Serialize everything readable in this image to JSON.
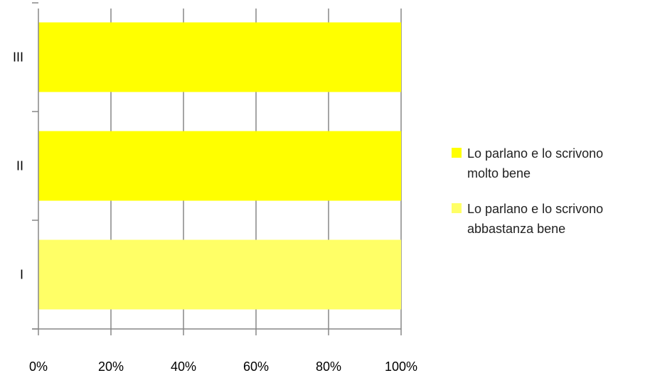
{
  "chart_data": {
    "type": "bar",
    "orientation": "horizontal",
    "stacked": "percent",
    "title": "",
    "xlabel": "",
    "ylabel": "",
    "categories": [
      "I",
      "II",
      "III"
    ],
    "x_ticks": [
      "0%",
      "20%",
      "40%",
      "60%",
      "80%",
      "100%"
    ],
    "xlim": [
      0,
      100
    ],
    "grid": "vertical",
    "legend_position": "right",
    "series": [
      {
        "name": "Lo parlano e lo scrivono molto bene",
        "name_lines": [
          "Lo parlano e lo scrivono",
          "molto bene"
        ],
        "color": "#FFFF00",
        "values": [
          0,
          100,
          100
        ]
      },
      {
        "name": "Lo parlano e lo scrivono abbastanza bene",
        "name_lines": [
          "Lo parlano e lo scrivono",
          "abbastanza bene"
        ],
        "color": "#FFFF66",
        "values": [
          100,
          0,
          0
        ]
      }
    ]
  }
}
